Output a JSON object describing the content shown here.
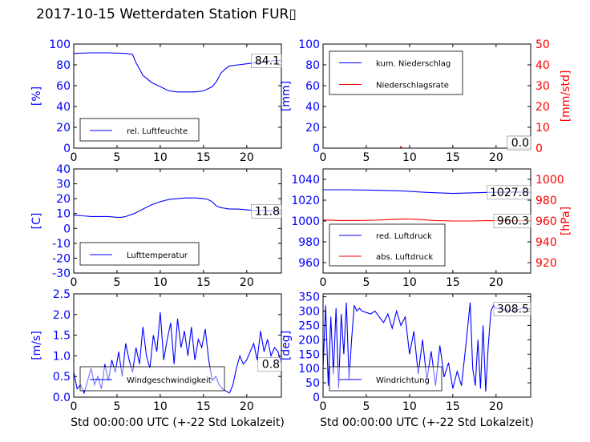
{
  "figure": {
    "title": "2017-10-15 Wetterdaten Station FUR▯",
    "xlabel": "Std 00:00:00 UTC (+-22 Std Lokalzeit)"
  },
  "colors": {
    "primary": "#0000ff",
    "secondary": "#ff0000",
    "axis": "#000000"
  },
  "chart_data": [
    {
      "type": "line",
      "name": "humidity",
      "ylabel": "[%]",
      "xlim": [
        0,
        24
      ],
      "ylim": [
        0,
        100
      ],
      "xticks": [
        0,
        5,
        10,
        15,
        20
      ],
      "yticks": [
        0,
        20,
        40,
        60,
        80,
        100
      ],
      "legend": [
        "rel. Luftfeuchte"
      ],
      "legend_position": "lower-center",
      "annotation": "84.1",
      "series": [
        {
          "name": "rel. Luftfeuchte",
          "color": "#0000ff",
          "x": [
            0,
            2,
            4,
            6,
            6.8,
            7.2,
            8,
            9,
            10,
            11,
            12,
            13,
            14,
            15,
            16,
            16.5,
            17,
            17.5,
            18,
            19,
            20,
            21,
            22,
            23,
            24
          ],
          "y": [
            91,
            91.5,
            91.5,
            91,
            90,
            82,
            70,
            63,
            59,
            55,
            54,
            54,
            54,
            55,
            59,
            64,
            72,
            76,
            79,
            80,
            81,
            82,
            83,
            84,
            84.1
          ]
        }
      ]
    },
    {
      "type": "line",
      "name": "precipitation",
      "ylabel": "[mm]",
      "ylabel_right": "[mm/std]",
      "xlim": [
        0,
        24
      ],
      "ylim": [
        0,
        100
      ],
      "ylim_right": [
        0,
        50
      ],
      "xticks": [
        0,
        5,
        10,
        15,
        20
      ],
      "yticks": [
        0,
        20,
        40,
        60,
        80,
        100
      ],
      "yticks_right": [
        0,
        10,
        20,
        30,
        40,
        50
      ],
      "legend": [
        "kum. Niederschlag",
        "Niederschlagsrate"
      ],
      "legend_position": "upper-left",
      "annotation": "0.0",
      "annotation2": "0.0",
      "series": [
        {
          "name": "kum. Niederschlag",
          "color": "#0000ff",
          "x": [
            0,
            24
          ],
          "y": [
            0,
            0
          ]
        },
        {
          "name": "Niederschlagsrate",
          "color": "#ff0000",
          "axis": "right",
          "x": [
            0,
            8.9,
            9.0,
            9.1,
            24
          ],
          "y": [
            0,
            0,
            0.8,
            0,
            0
          ]
        }
      ]
    },
    {
      "type": "line",
      "name": "temperature",
      "ylabel": "[C]",
      "xlim": [
        0,
        24
      ],
      "ylim": [
        -30,
        40
      ],
      "xticks": [
        0,
        5,
        10,
        15,
        20
      ],
      "yticks": [
        -30,
        -20,
        -10,
        0,
        10,
        20,
        30,
        40
      ],
      "legend": [
        "Lufttemperatur"
      ],
      "legend_position": "lower-center",
      "annotation": "11.8",
      "series": [
        {
          "name": "Lufttemperatur",
          "color": "#0000ff",
          "x": [
            0,
            1,
            2,
            3,
            4,
            5,
            5.5,
            6,
            7,
            8,
            9,
            10,
            11,
            12,
            13,
            14,
            15,
            15.5,
            16,
            16.5,
            17,
            18,
            19,
            20,
            21,
            22,
            23,
            24
          ],
          "y": [
            9,
            8.5,
            8,
            8,
            8,
            7.5,
            7.5,
            8,
            10,
            13,
            16,
            18,
            19.5,
            20,
            20.5,
            20.5,
            20,
            19.5,
            18,
            15,
            14,
            13,
            13,
            12.5,
            12,
            12,
            11.8,
            11.8
          ]
        }
      ]
    },
    {
      "type": "line",
      "name": "pressure",
      "ylabel_right": "[hPa]",
      "xlim": [
        0,
        24
      ],
      "ylim": [
        950,
        1050
      ],
      "ylim_right": [
        910,
        1010
      ],
      "xticks": [
        0,
        5,
        10,
        15,
        20
      ],
      "yticks": [
        960,
        980,
        1000,
        1020,
        1040
      ],
      "yticks_right": [
        920,
        940,
        960,
        980,
        1000
      ],
      "legend": [
        "red. Luftdruck",
        "abs. Luftdruck"
      ],
      "legend_position": "lower-left",
      "annotation": "1027.8",
      "annotation2": "960.3",
      "series": [
        {
          "name": "red. Luftdruck",
          "color": "#0000ff",
          "x": [
            0,
            3,
            6,
            9,
            12,
            15,
            17,
            19,
            21,
            24
          ],
          "y": [
            1030,
            1030,
            1029.5,
            1029,
            1027.5,
            1026.5,
            1027,
            1027.5,
            1027.8,
            1027.8
          ]
        },
        {
          "name": "abs. Luftdruck",
          "color": "#ff0000",
          "axis": "right",
          "x": [
            0,
            2,
            4,
            6,
            8,
            9.5,
            11,
            13,
            15,
            17,
            19,
            21,
            24
          ],
          "y": [
            961,
            960.5,
            960.5,
            960.8,
            961.5,
            962,
            961.5,
            960.5,
            960,
            960,
            960.3,
            960.3,
            960.3
          ]
        }
      ]
    },
    {
      "type": "line",
      "name": "wind-speed",
      "ylabel": "[m/s]",
      "xlim": [
        0,
        24
      ],
      "ylim": [
        0,
        2.5
      ],
      "xticks": [
        0,
        5,
        10,
        15,
        20
      ],
      "yticks": [
        0.0,
        0.5,
        1.0,
        1.5,
        2.0,
        2.5
      ],
      "legend": [
        "Windgeschwindigkeit"
      ],
      "legend_position": "lower-center",
      "annotation": "0.8",
      "series": [
        {
          "name": "Windgeschwindigkeit",
          "color": "#0000ff",
          "x": [
            0,
            0.4,
            0.8,
            1.2,
            1.6,
            2.0,
            2.4,
            2.8,
            3.2,
            3.6,
            4.0,
            4.4,
            4.8,
            5.2,
            5.6,
            6.0,
            6.4,
            6.8,
            7.2,
            7.6,
            8.0,
            8.4,
            8.8,
            9.2,
            9.6,
            10.0,
            10.4,
            10.8,
            11.2,
            11.6,
            12.0,
            12.4,
            12.8,
            13.2,
            13.6,
            14.0,
            14.4,
            14.8,
            15.2,
            15.6,
            16.0,
            16.4,
            16.8,
            17.2,
            17.6,
            18.0,
            18.4,
            18.8,
            19.2,
            19.6,
            20.0,
            20.4,
            20.8,
            21.2,
            21.6,
            22.0,
            22.4,
            22.8,
            23.2,
            23.6,
            24.0
          ],
          "y": [
            0.6,
            0.2,
            0.3,
            0.1,
            0.4,
            0.7,
            0.3,
            0.5,
            0.2,
            0.8,
            0.4,
            0.9,
            0.6,
            1.1,
            0.5,
            1.3,
            0.9,
            0.6,
            1.2,
            0.8,
            1.7,
            1.0,
            0.7,
            1.5,
            1.1,
            2.05,
            0.9,
            1.4,
            1.8,
            0.8,
            1.9,
            1.2,
            1.6,
            1.0,
            1.7,
            0.9,
            1.4,
            1.2,
            1.65,
            0.9,
            0.4,
            0.5,
            0.3,
            0.2,
            0.15,
            0.1,
            0.3,
            0.7,
            1.0,
            0.8,
            0.9,
            1.1,
            1.3,
            0.9,
            1.6,
            1.1,
            1.4,
            1.0,
            1.2,
            1.1,
            0.8
          ]
        }
      ]
    },
    {
      "type": "line",
      "name": "wind-direction",
      "ylabel": "[deg]",
      "xlim": [
        0,
        24
      ],
      "ylim": [
        0,
        360
      ],
      "xticks": [
        0,
        5,
        10,
        15,
        20
      ],
      "yticks": [
        0,
        50,
        100,
        150,
        200,
        250,
        300,
        350
      ],
      "legend": [
        "Windrichtung"
      ],
      "legend_position": "lower-center",
      "annotation": "308.5",
      "series": [
        {
          "name": "Windrichtung",
          "color": "#0000ff",
          "x": [
            0,
            0.3,
            0.6,
            0.9,
            1.2,
            1.5,
            1.8,
            2.1,
            2.4,
            2.7,
            3.0,
            3.3,
            3.6,
            3.9,
            4.2,
            4.5,
            5.0,
            5.5,
            6.0,
            6.5,
            7.0,
            7.5,
            8.0,
            8.5,
            9.0,
            9.5,
            10.0,
            10.5,
            11.0,
            11.5,
            12.0,
            12.5,
            13.0,
            13.5,
            14.0,
            14.5,
            15.0,
            15.5,
            16.0,
            16.5,
            17.0,
            17.3,
            17.6,
            17.9,
            18.2,
            18.5,
            18.8,
            19.1,
            19.4,
            19.7,
            20.0,
            21.0,
            22.0,
            23.0,
            24.0
          ],
          "y": [
            100,
            320,
            40,
            280,
            80,
            310,
            30,
            290,
            150,
            330,
            60,
            200,
            320,
            300,
            310,
            300,
            295,
            290,
            300,
            280,
            260,
            290,
            240,
            300,
            250,
            280,
            150,
            230,
            80,
            200,
            60,
            160,
            40,
            180,
            70,
            120,
            30,
            90,
            40,
            180,
            330,
            100,
            40,
            200,
            30,
            250,
            20,
            180,
            300,
            320,
            310,
            305,
            300,
            310,
            308.5
          ]
        }
      ]
    }
  ]
}
